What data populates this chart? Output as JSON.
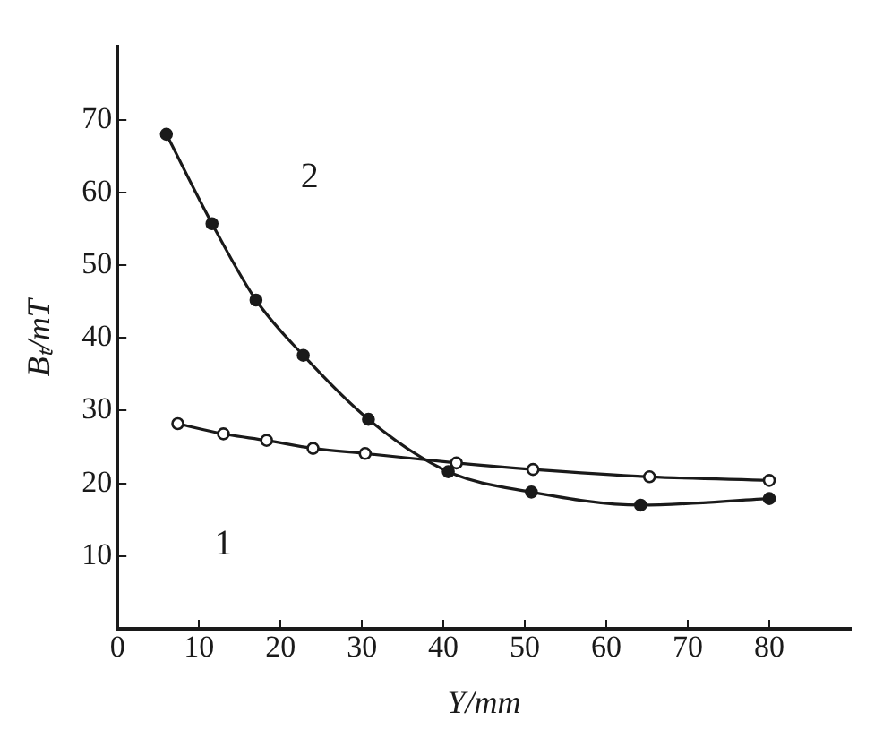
{
  "chart_data": {
    "type": "line",
    "xlabel": "Y/mm",
    "ylabel": "Bₜ/mT",
    "xlim": [
      0,
      90
    ],
    "xticks": [
      0,
      10,
      20,
      30,
      40,
      50,
      60,
      70,
      80
    ],
    "ylim": [
      0,
      80
    ],
    "yticks": [
      10,
      20,
      30,
      40,
      50,
      60,
      70
    ],
    "grid": false,
    "legend": false,
    "marker": "circle",
    "line_style": "solid",
    "series": [
      {
        "name": "1",
        "color": "#1a1a1a",
        "x": [
          7.4,
          13,
          18.3,
          24,
          30.4,
          41.6,
          51,
          65.3,
          80
        ],
        "values": [
          28.2,
          26.8,
          25.9,
          24.8,
          24.1,
          22.8,
          21.9,
          20.9,
          20.4
        ]
      },
      {
        "name": "2",
        "color": "#1a1a1a",
        "x": [
          6,
          11.6,
          17,
          22.8,
          30.8,
          40.6,
          50.8,
          64.2,
          80
        ],
        "values": [
          68,
          55.7,
          45.2,
          37.6,
          28.8,
          21.6,
          18.8,
          17,
          17.9
        ]
      }
    ]
  }
}
